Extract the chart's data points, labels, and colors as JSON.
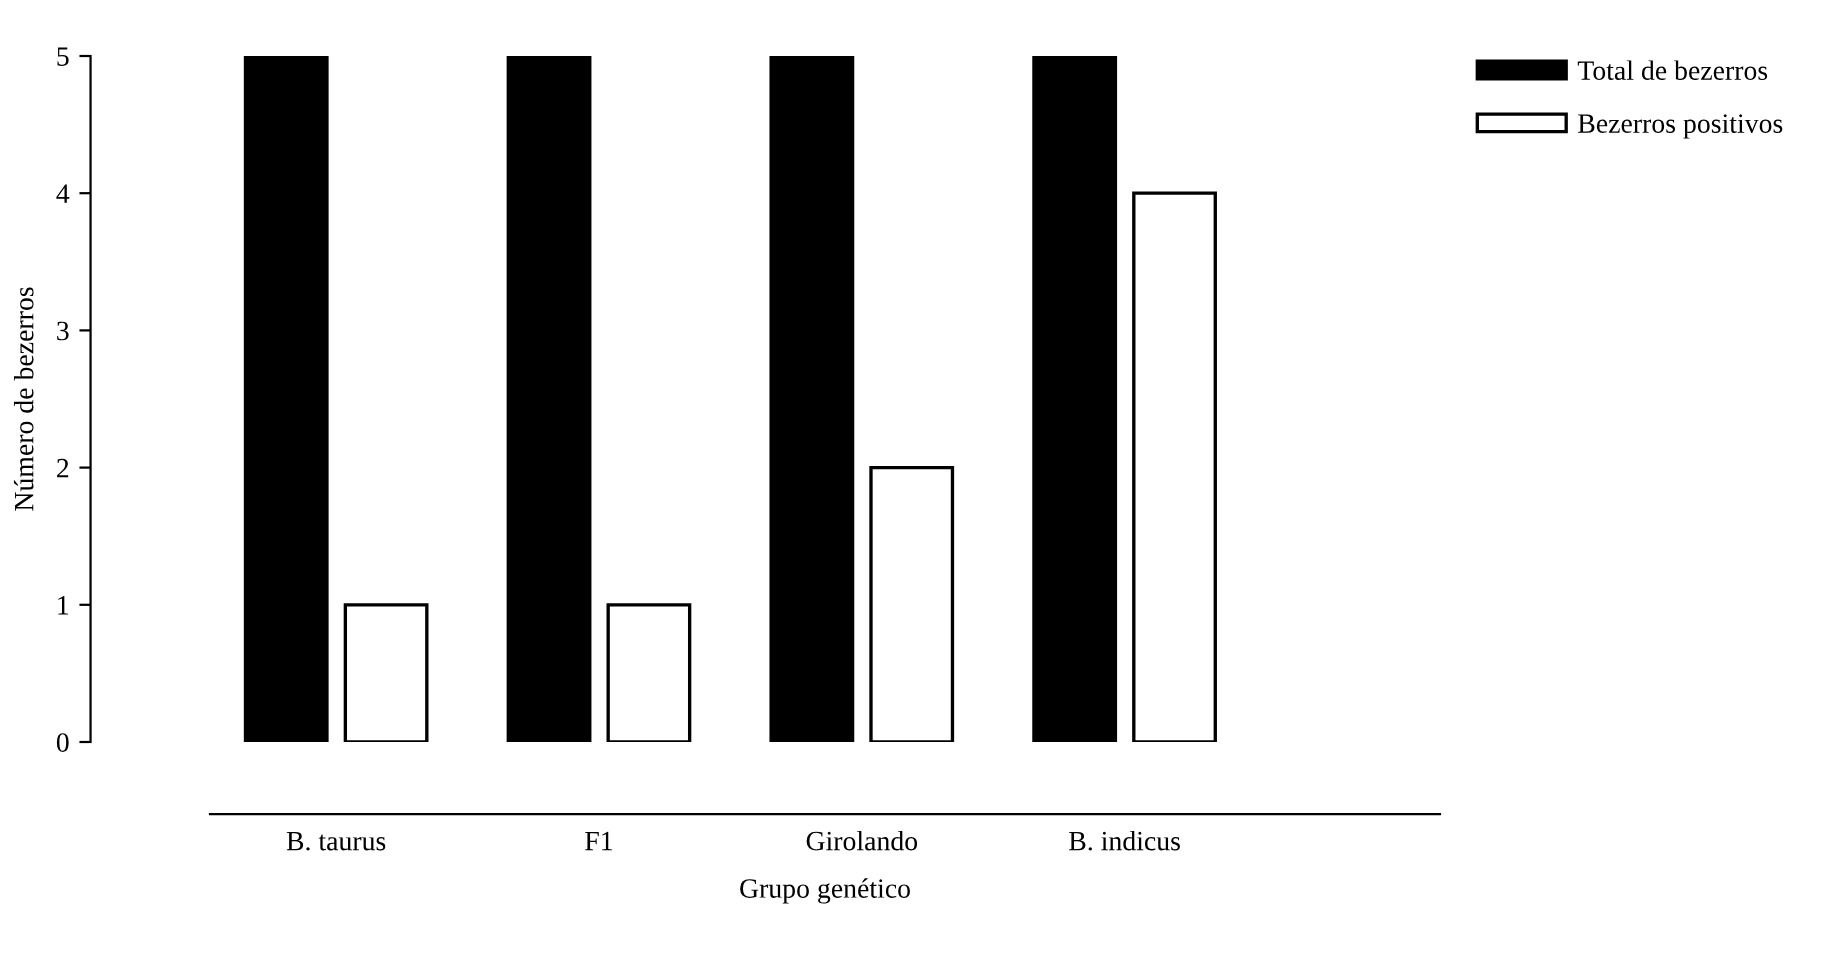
{
  "chart_data": {
    "type": "bar",
    "xlabel": "Grupo genético",
    "ylabel": "Número de bezerros",
    "categories": [
      "B. taurus",
      "F1",
      "Girolando",
      "B. indicus"
    ],
    "series": [
      {
        "name": "Total de bezerros",
        "color": "#000000",
        "values": [
          5,
          5,
          5,
          5
        ]
      },
      {
        "name": "Bezerros positivos",
        "color": "#ffffff",
        "values": [
          1,
          1,
          2,
          4
        ]
      }
    ],
    "ylim": [
      0,
      5
    ],
    "yticks": [
      0,
      1,
      2,
      3,
      4,
      5
    ],
    "grid": false,
    "legend": "top right"
  }
}
